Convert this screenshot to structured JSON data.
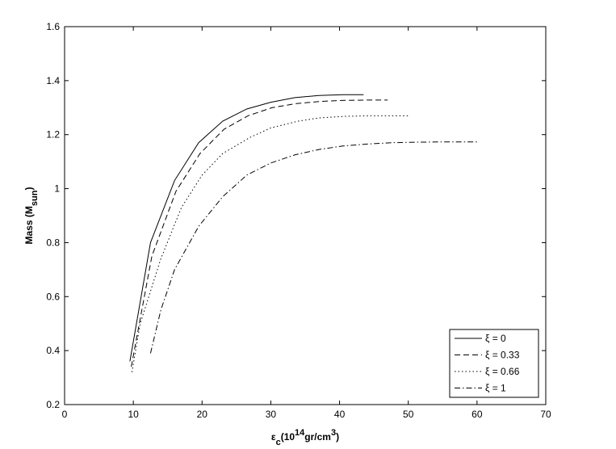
{
  "chart_data": {
    "type": "line",
    "xlabel": [
      {
        "text": "ε"
      },
      {
        "text": "c",
        "shift": "sub"
      },
      {
        "text": "(10"
      },
      {
        "text": "14",
        "shift": "super"
      },
      {
        "text": "gr/cm"
      },
      {
        "text": "3",
        "shift": "super"
      },
      {
        "text": ")"
      }
    ],
    "ylabel": [
      {
        "text": "Mass (M"
      },
      {
        "text": "sun",
        "shift": "sub"
      },
      {
        "text": ")"
      }
    ],
    "xlim": [
      0,
      70
    ],
    "xticks": [
      0,
      10,
      20,
      30,
      40,
      50,
      60,
      70
    ],
    "ylim": [
      0.2,
      1.6
    ],
    "yticks": [
      0.2,
      0.4,
      0.6,
      0.8,
      1,
      1.2,
      1.4,
      1.6
    ],
    "legend": "lower right",
    "series": [
      {
        "name": "ξ = 0",
        "color": "#000000",
        "dash": "solid",
        "x": [
          9.5,
          12.5,
          16,
          19.5,
          23,
          26.5,
          30,
          33.5,
          37,
          40.5,
          43.5
        ],
        "values": [
          0.36,
          0.8,
          1.03,
          1.17,
          1.25,
          1.295,
          1.32,
          1.337,
          1.345,
          1.348,
          1.348
        ]
      },
      {
        "name": "ξ = 0.33",
        "color": "#000000",
        "dash": "dashed",
        "x": [
          9.7,
          12.7,
          16.2,
          19.7,
          23.2,
          26.7,
          30.2,
          33.7,
          37.2,
          40.7,
          44,
          47
        ],
        "values": [
          0.34,
          0.75,
          0.99,
          1.13,
          1.22,
          1.27,
          1.3,
          1.315,
          1.323,
          1.327,
          1.328,
          1.328
        ]
      },
      {
        "name": "ξ = 0.66",
        "color": "#000000",
        "dash": "dotted",
        "x": [
          9.8,
          11,
          14,
          17,
          20,
          23,
          27,
          30,
          34,
          37,
          41,
          45,
          50
        ],
        "values": [
          0.32,
          0.5,
          0.74,
          0.93,
          1.05,
          1.13,
          1.19,
          1.225,
          1.25,
          1.262,
          1.268,
          1.27,
          1.27
        ]
      },
      {
        "name": "ξ = 1",
        "color": "#000000",
        "dash": "dashdot",
        "x": [
          12.5,
          14,
          16,
          19.5,
          23,
          26.5,
          30,
          33.5,
          37,
          40.5,
          44,
          47.5,
          51,
          55,
          60
        ],
        "values": [
          0.39,
          0.55,
          0.7,
          0.86,
          0.97,
          1.05,
          1.095,
          1.125,
          1.145,
          1.158,
          1.165,
          1.17,
          1.172,
          1.173,
          1.173
        ]
      }
    ]
  }
}
